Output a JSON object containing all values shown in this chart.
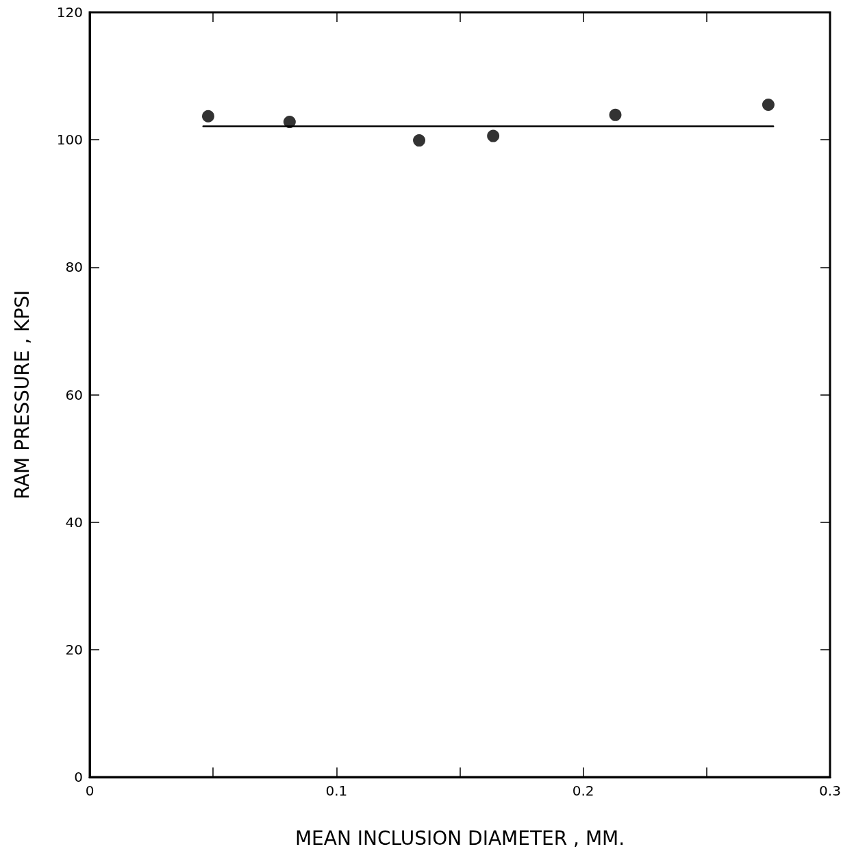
{
  "chart_data": {
    "type": "scatter",
    "xlabel": "MEAN INCLUSION DIAMETER , MM.",
    "ylabel": "RAM PRESSURE , KPSI",
    "xlim": [
      0,
      0.3
    ],
    "ylim": [
      0,
      120
    ],
    "xticks": [
      0,
      {
        "value": 0.05,
        "label": null
      },
      0.1,
      {
        "value": 0.15,
        "label": null
      },
      0.2,
      {
        "value": 0.25,
        "label": null
      },
      0.3
    ],
    "yticks": [
      0,
      20,
      40,
      60,
      80,
      100,
      120
    ],
    "grid": false,
    "marker": "circle",
    "series": [
      {
        "type": "scatter",
        "color": "#000000",
        "x": [
          0.048,
          0.081,
          0.1335,
          0.1635,
          0.213,
          0.275
        ],
        "values": [
          103.7,
          102.8,
          99.9,
          100.6,
          103.9,
          105.5
        ]
      },
      {
        "type": "line",
        "color": "#000000",
        "marker": "none",
        "line_style": "solid",
        "x": [
          0.046,
          0.277
        ],
        "values": [
          102.1,
          102.1
        ]
      }
    ]
  }
}
